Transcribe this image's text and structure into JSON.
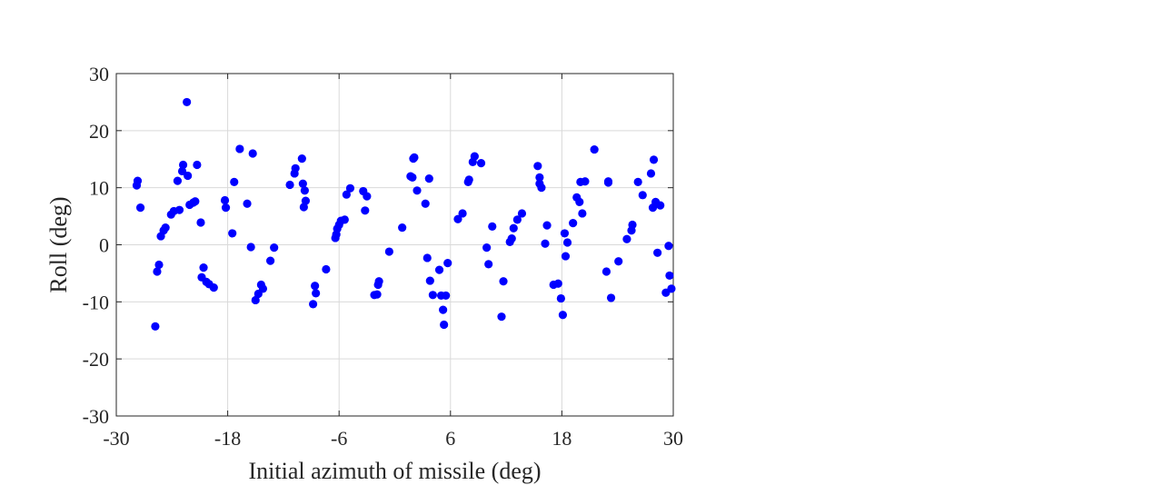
{
  "chart_data": {
    "type": "scatter",
    "title": "",
    "xlabel": "Initial azimuth of missile (deg)",
    "ylabel": "Roll (deg)",
    "xlim": [
      -30,
      30
    ],
    "ylim": [
      -30,
      30
    ],
    "xticks": [
      -30,
      -18,
      -6,
      6,
      18,
      30
    ],
    "yticks": [
      -30,
      -20,
      -10,
      0,
      10,
      20,
      30
    ],
    "xtick_labels": [
      "-30",
      "-18",
      "-6",
      "6",
      "18",
      "30"
    ],
    "ytick_labels": [
      "-30",
      "-20",
      "-10",
      "0",
      "10",
      "20",
      "30"
    ],
    "grid": true,
    "marker_color": "#0000ff",
    "series": [
      {
        "points": [
          [
            -27.8,
            10.4
          ],
          [
            -27.7,
            11.2
          ],
          [
            -27.4,
            6.5
          ],
          [
            -25.8,
            -14.3
          ],
          [
            -25.6,
            -4.7
          ],
          [
            -25.4,
            -3.5
          ],
          [
            -25.2,
            1.5
          ],
          [
            -24.9,
            2.5
          ],
          [
            -24.7,
            3.0
          ],
          [
            -24.1,
            5.3
          ],
          [
            -23.8,
            5.9
          ],
          [
            -23.4,
            11.2
          ],
          [
            -23.2,
            6.1
          ],
          [
            -22.9,
            12.9
          ],
          [
            -22.8,
            14.0
          ],
          [
            -22.4,
            25.0
          ],
          [
            -22.3,
            12.1
          ],
          [
            -22.1,
            7.0
          ],
          [
            -21.7,
            7.4
          ],
          [
            -21.5,
            7.6
          ],
          [
            -21.3,
            14.0
          ],
          [
            -20.9,
            3.9
          ],
          [
            -20.8,
            -5.7
          ],
          [
            -20.6,
            -4.0
          ],
          [
            -20.3,
            -6.5
          ],
          [
            -20.0,
            -6.9
          ],
          [
            -19.5,
            -7.5
          ],
          [
            -18.3,
            7.8
          ],
          [
            -18.2,
            6.5
          ],
          [
            -17.5,
            2.0
          ],
          [
            -17.3,
            11.0
          ],
          [
            -16.7,
            16.8
          ],
          [
            -15.9,
            7.2
          ],
          [
            -15.5,
            -0.4
          ],
          [
            -15.3,
            16.0
          ],
          [
            -15.0,
            -9.7
          ],
          [
            -14.7,
            -8.6
          ],
          [
            -14.4,
            -7.0
          ],
          [
            -14.2,
            -7.7
          ],
          [
            -13.4,
            -2.8
          ],
          [
            -13.0,
            -0.5
          ],
          [
            -11.3,
            10.5
          ],
          [
            -10.8,
            12.5
          ],
          [
            -10.7,
            13.4
          ],
          [
            -10.0,
            15.1
          ],
          [
            -9.9,
            10.7
          ],
          [
            -9.8,
            6.6
          ],
          [
            -9.7,
            9.5
          ],
          [
            -9.6,
            7.7
          ],
          [
            -8.8,
            -10.4
          ],
          [
            -8.6,
            -7.2
          ],
          [
            -8.5,
            -8.5
          ],
          [
            -7.4,
            -4.3
          ],
          [
            -6.4,
            1.2
          ],
          [
            -6.3,
            1.8
          ],
          [
            -6.2,
            2.8
          ],
          [
            -6.0,
            3.5
          ],
          [
            -5.8,
            4.2
          ],
          [
            -5.4,
            4.4
          ],
          [
            -5.2,
            8.8
          ],
          [
            -4.8,
            9.9
          ],
          [
            -3.4,
            9.4
          ],
          [
            -3.2,
            6.0
          ],
          [
            -3.0,
            8.5
          ],
          [
            -2.2,
            -8.8
          ],
          [
            -1.9,
            -8.7
          ],
          [
            -1.8,
            -7.0
          ],
          [
            -1.7,
            -6.4
          ],
          [
            -0.6,
            -1.2
          ],
          [
            0.8,
            3.0
          ],
          [
            1.7,
            12.0
          ],
          [
            1.9,
            11.8
          ],
          [
            2.0,
            15.1
          ],
          [
            2.1,
            15.3
          ],
          [
            2.4,
            9.5
          ],
          [
            3.3,
            7.2
          ],
          [
            3.5,
            -2.3
          ],
          [
            3.7,
            11.6
          ],
          [
            3.8,
            -6.3
          ],
          [
            4.1,
            -8.8
          ],
          [
            4.8,
            -4.4
          ],
          [
            5.0,
            -8.9
          ],
          [
            5.2,
            -11.4
          ],
          [
            5.3,
            -14.0
          ],
          [
            5.5,
            -8.9
          ],
          [
            5.7,
            -3.2
          ],
          [
            6.8,
            4.5
          ],
          [
            7.3,
            5.5
          ],
          [
            7.9,
            11.0
          ],
          [
            8.0,
            11.4
          ],
          [
            8.4,
            14.5
          ],
          [
            8.6,
            15.5
          ],
          [
            9.3,
            14.3
          ],
          [
            9.9,
            -0.5
          ],
          [
            10.1,
            -3.4
          ],
          [
            10.5,
            3.2
          ],
          [
            11.5,
            -12.6
          ],
          [
            11.7,
            -6.4
          ],
          [
            12.4,
            0.5
          ],
          [
            12.6,
            1.1
          ],
          [
            12.8,
            2.9
          ],
          [
            13.2,
            4.4
          ],
          [
            13.7,
            5.5
          ],
          [
            15.4,
            13.8
          ],
          [
            15.6,
            11.8
          ],
          [
            15.6,
            10.7
          ],
          [
            15.8,
            10.0
          ],
          [
            16.2,
            0.2
          ],
          [
            16.4,
            3.4
          ],
          [
            17.1,
            -7.0
          ],
          [
            17.6,
            -6.8
          ],
          [
            17.9,
            -9.4
          ],
          [
            18.1,
            -12.3
          ],
          [
            18.3,
            2.0
          ],
          [
            18.4,
            -2.0
          ],
          [
            18.6,
            0.4
          ],
          [
            19.2,
            3.8
          ],
          [
            19.6,
            8.3
          ],
          [
            19.9,
            7.5
          ],
          [
            20.0,
            11.0
          ],
          [
            20.2,
            5.5
          ],
          [
            20.5,
            11.1
          ],
          [
            21.5,
            16.7
          ],
          [
            22.8,
            -4.7
          ],
          [
            23.0,
            10.9
          ],
          [
            23.0,
            11.1
          ],
          [
            23.3,
            -9.3
          ],
          [
            24.1,
            -2.9
          ],
          [
            25.0,
            1.0
          ],
          [
            25.5,
            2.5
          ],
          [
            25.6,
            3.5
          ],
          [
            26.2,
            11.0
          ],
          [
            26.7,
            8.7
          ],
          [
            27.6,
            12.5
          ],
          [
            27.8,
            6.5
          ],
          [
            27.9,
            14.9
          ],
          [
            28.1,
            7.5
          ],
          [
            28.3,
            -1.4
          ],
          [
            28.6,
            6.9
          ],
          [
            29.2,
            -8.4
          ],
          [
            29.5,
            -0.2
          ],
          [
            29.6,
            -5.4
          ],
          [
            29.8,
            -7.7
          ]
        ]
      }
    ]
  }
}
